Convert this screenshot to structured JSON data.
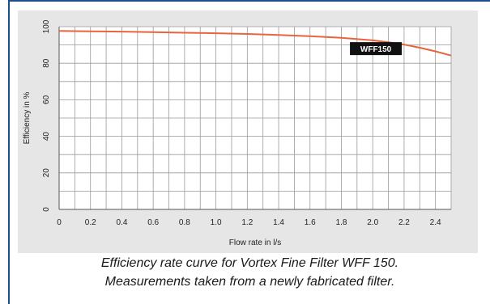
{
  "chart_data": {
    "type": "line",
    "xlabel": "Flow rate in l/s",
    "ylabel": "Efficiency in %",
    "xlim": [
      0,
      2.5
    ],
    "ylim": [
      0,
      100
    ],
    "x_ticks": [
      "0",
      "0.2",
      "0.4",
      "0.6",
      "0.8",
      "1.0",
      "1.2",
      "1.4",
      "1.6",
      "1.8",
      "2.0",
      "2.2",
      "2.4"
    ],
    "y_ticks": [
      "0",
      "20",
      "40",
      "60",
      "80",
      "100"
    ],
    "grid": true,
    "series": [
      {
        "name": "WFF150",
        "color": "#e8643c",
        "x": [
          0,
          0.2,
          0.4,
          0.6,
          0.8,
          1.0,
          1.2,
          1.4,
          1.6,
          1.8,
          2.0,
          2.1,
          2.2,
          2.3,
          2.4,
          2.5
        ],
        "y": [
          97.7,
          97.5,
          97.3,
          97.0,
          96.7,
          96.4,
          96.0,
          95.5,
          94.8,
          93.9,
          92.5,
          91.5,
          90.2,
          88.5,
          86.5,
          84.2
        ]
      }
    ]
  },
  "caption": {
    "line1": "Efficiency rate curve for Vortex Fine Filter WFF 150.",
    "line2": "Measurements taken from a newly fabricated filter."
  }
}
